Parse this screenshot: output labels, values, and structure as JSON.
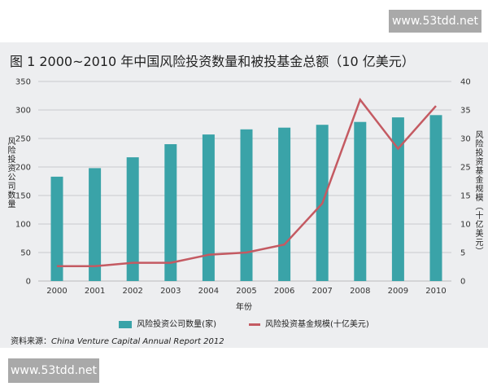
{
  "watermark_top": "www.53tdd.net",
  "watermark_bottom": "www.53tdd.net",
  "chart_data": {
    "type": "bar+line",
    "title": "图 1  2000~2010 年中国风险投资数量和被投基金总额（10 亿美元）",
    "categories": [
      "2000",
      "2001",
      "2002",
      "2003",
      "2004",
      "2005",
      "2006",
      "2007",
      "2008",
      "2009",
      "2010"
    ],
    "xlabel": "年份",
    "ylabel_left": "风险投资公司数量",
    "ylabel_right": "风险投资基金规模（十亿美元）",
    "left_ticks": [
      0,
      50,
      100,
      150,
      200,
      250,
      300,
      350
    ],
    "right_ticks": [
      0,
      5,
      10,
      15,
      25,
      30,
      35,
      40
    ],
    "ylim_left": [
      0,
      350
    ],
    "grid": true,
    "legend_position": "bottom",
    "series": [
      {
        "name": "风险投资公司数量(家)",
        "type": "bar",
        "axis": "left",
        "color": "#3aa3a8",
        "values": [
          183,
          198,
          217,
          240,
          257,
          266,
          269,
          274,
          279,
          287,
          291
        ]
      },
      {
        "name": "风险投资基金规模(十亿美元)",
        "type": "line",
        "axis": "right",
        "color": "#c45a62",
        "values": [
          2.6,
          2.6,
          3.2,
          3.2,
          4.6,
          5.0,
          6.4,
          13.6,
          36.8,
          28.2,
          35.7
        ]
      }
    ],
    "source_label": "资料来源：",
    "source": "China Venture Capital Annual Report 2012"
  }
}
